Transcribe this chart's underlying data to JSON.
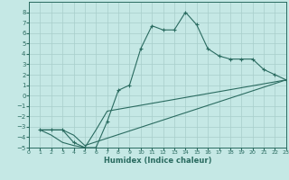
{
  "title": "",
  "xlabel": "Humidex (Indice chaleur)",
  "bg_color": "#c5e8e5",
  "grid_color": "#a8ceca",
  "line_color": "#2a6b60",
  "xlim": [
    0,
    23
  ],
  "ylim": [
    -5,
    9
  ],
  "xticks": [
    0,
    1,
    2,
    3,
    4,
    5,
    6,
    7,
    8,
    9,
    10,
    11,
    12,
    13,
    14,
    15,
    16,
    17,
    18,
    19,
    20,
    21,
    22,
    23
  ],
  "yticks": [
    -5,
    -4,
    -3,
    -2,
    -1,
    0,
    1,
    2,
    3,
    4,
    5,
    6,
    7,
    8
  ],
  "curve1_x": [
    1,
    2,
    3,
    4,
    5,
    6,
    7,
    8,
    9,
    10,
    11,
    12,
    13,
    14,
    15,
    16,
    17,
    18,
    19,
    20,
    21,
    22,
    23
  ],
  "curve1_y": [
    -3.3,
    -3.3,
    -3.3,
    -4.5,
    -5.0,
    -5.0,
    -2.5,
    0.5,
    1.0,
    4.5,
    6.7,
    6.3,
    6.3,
    8.0,
    6.8,
    4.5,
    3.8,
    3.5,
    3.5,
    3.5,
    2.5,
    2.0,
    1.5
  ],
  "curve2_x": [
    1,
    2,
    3,
    4,
    5,
    23
  ],
  "curve2_y": [
    -3.3,
    -3.3,
    -3.3,
    -3.8,
    -4.8,
    1.5
  ],
  "curve3_x": [
    1,
    2,
    3,
    4,
    5,
    6,
    7,
    23
  ],
  "curve3_y": [
    -3.3,
    -3.8,
    -4.5,
    -4.8,
    -5.0,
    -3.3,
    -1.5,
    1.5
  ]
}
